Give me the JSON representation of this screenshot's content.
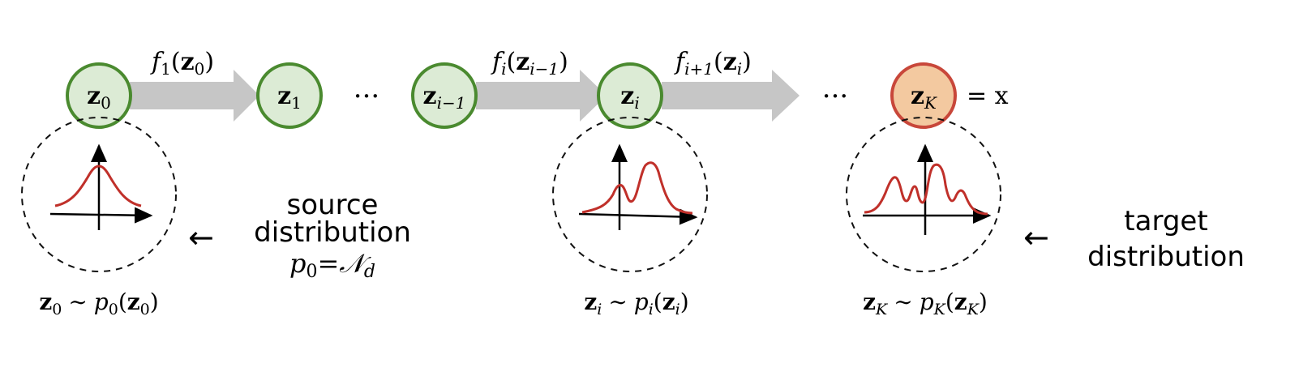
{
  "nodes": {
    "z0": {
      "var": "z",
      "sub": "0"
    },
    "z1": {
      "var": "z",
      "sub": "1"
    },
    "zim1": {
      "var": "z",
      "sub": "i−1"
    },
    "zi": {
      "var": "z",
      "sub": "i"
    },
    "zK": {
      "var": "z",
      "sub": "K",
      "suffix": "= x"
    }
  },
  "ellipsis": "···",
  "arrows": {
    "f1": {
      "f": "f",
      "fsub": "1",
      "arg": "z",
      "argsub": "0"
    },
    "fi": {
      "f": "f",
      "fsub": "i",
      "arg": "z",
      "argsub": "i−1"
    },
    "fi1": {
      "f": "f",
      "fsub": "i+1",
      "arg": "z",
      "argsub": "i"
    }
  },
  "captions": {
    "c0": {
      "z": "z",
      "zsub": "0",
      "tilde": "∼",
      "p": "p",
      "psub": "0",
      "arg": "z",
      "argsub": "0"
    },
    "ci": {
      "z": "z",
      "zsub": "i",
      "tilde": "∼",
      "p": "p",
      "psub": "i",
      "arg": "z",
      "argsub": "i"
    },
    "cK": {
      "z": "z",
      "zsub": "K",
      "tilde": "∼",
      "p": "p",
      "psub": "K",
      "arg": "z",
      "argsub": "K"
    }
  },
  "source": {
    "line1": "source",
    "line2": "distribution",
    "formula_p": "p",
    "formula_psub": "0",
    "formula_eq": "=",
    "formula_N": "𝒩",
    "formula_Nsub": "d"
  },
  "target": {
    "line1": "target",
    "line2": "distribution"
  },
  "pointer_arrow": "←",
  "colors": {
    "node_fill": "#dcebd5",
    "node_stroke": "#4a8a2f",
    "target_fill": "#f3c9a0",
    "target_stroke": "#c8473a",
    "flow_arrow": "#c6c6c6",
    "curve": "#c0302a"
  }
}
